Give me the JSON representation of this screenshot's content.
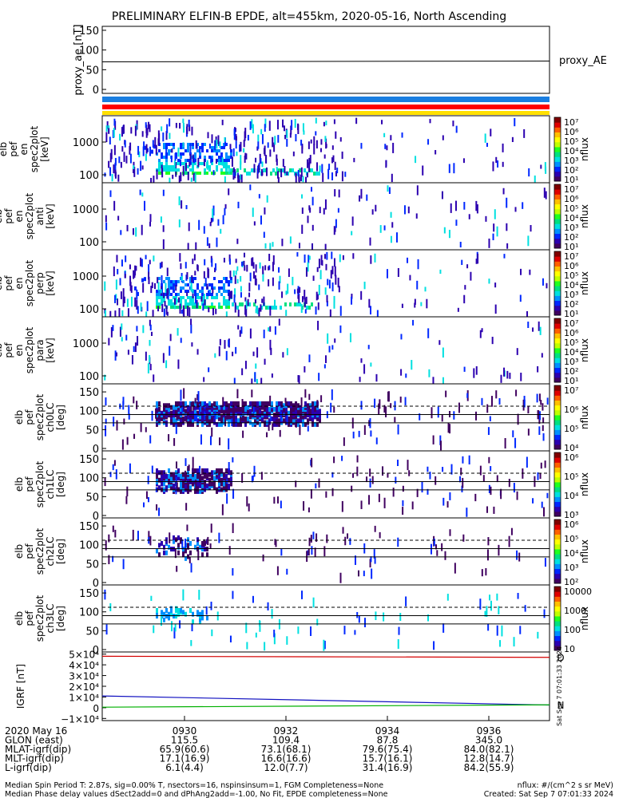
{
  "title": "PRELIMINARY ELFIN-B EPDE, alt=455km, 2020-05-16, North Ascending",
  "colors": {
    "bar_blue": "#1a7ee0",
    "bar_red": "#ff0000",
    "bar_yellow": "#ffe000",
    "trace_red": "#d40000",
    "trace_blue": "#1010c0",
    "trace_green": "#00b000",
    "colorscale": [
      "#ffffff",
      "#400060",
      "#2c00b0",
      "#0028ff",
      "#0090ff",
      "#00e0e0",
      "#00e080",
      "#20ff20",
      "#c0ff00",
      "#ffff00",
      "#ffc000",
      "#ff6000",
      "#e00000",
      "#800000"
    ]
  },
  "chart_data": [
    {
      "type": "line",
      "ylabel": "proxy_ae [nT]",
      "yticks": [
        "150",
        "100",
        "50",
        "0"
      ],
      "legend": "proxy_AE",
      "x": [
        "0928",
        "0937.6"
      ],
      "values": [
        70,
        72
      ],
      "ylim": [
        -10,
        160
      ]
    },
    {
      "type": "heatmap",
      "ylabel": "elb pef en spec2plot [keV]",
      "yticks": [
        "1000",
        "100"
      ],
      "colorbar": {
        "label": "nflux",
        "ticks": [
          "10⁷",
          "10⁶",
          "10⁵",
          "10⁴",
          "10³",
          "10²",
          "10¹"
        ]
      }
    },
    {
      "type": "heatmap",
      "ylabel": "elb pef en spec2plot anti [keV]",
      "yticks": [
        "1000",
        "100"
      ],
      "colorbar": {
        "label": "nflux",
        "ticks": [
          "10⁷",
          "10⁶",
          "10⁵",
          "10⁴",
          "10³",
          "10²",
          "10¹"
        ]
      }
    },
    {
      "type": "heatmap",
      "ylabel": "elb pef en spec2plot perp [keV]",
      "yticks": [
        "1000",
        "100"
      ],
      "colorbar": {
        "label": "nflux",
        "ticks": [
          "10⁷",
          "10⁶",
          "10⁵",
          "10⁴",
          "10³",
          "10²",
          "10¹"
        ]
      }
    },
    {
      "type": "heatmap",
      "ylabel": "elb pef en spec2plot para [keV]",
      "yticks": [
        "1000",
        "100"
      ],
      "colorbar": {
        "label": "nflux",
        "ticks": [
          "10⁷",
          "10⁶",
          "10⁵",
          "10⁴",
          "10³",
          "10²",
          "10¹"
        ]
      }
    },
    {
      "type": "heatmap",
      "ylabel": "elb pef spec2plot ch0LC [deg]",
      "yticks": [
        "150",
        "100",
        "50",
        "0"
      ],
      "colorbar": {
        "label": "nflux",
        "ticks": [
          "10⁷",
          "10⁶",
          "10⁵",
          "10⁴"
        ]
      }
    },
    {
      "type": "heatmap",
      "ylabel": "elb pef spec2plot ch1LC [deg]",
      "yticks": [
        "150",
        "100",
        "50",
        "0"
      ],
      "colorbar": {
        "label": "nflux",
        "ticks": [
          "10⁶",
          "10⁵",
          "10⁴",
          "10³"
        ]
      }
    },
    {
      "type": "heatmap",
      "ylabel": "elb pef spec2plot ch2LC [deg]",
      "yticks": [
        "150",
        "100",
        "50",
        "0"
      ],
      "colorbar": {
        "label": "nflux",
        "ticks": [
          "10⁶",
          "10⁵",
          "10⁴",
          "10³",
          "10²"
        ]
      }
    },
    {
      "type": "heatmap",
      "ylabel": "elb pef spec2plot ch3LC [deg]",
      "yticks": [
        "150",
        "100",
        "50",
        "0"
      ],
      "colorbar": {
        "label": "nflux",
        "ticks": [
          "10000",
          "1000",
          "100",
          "10"
        ]
      }
    },
    {
      "type": "line",
      "ylabel": "IGRF [nT]",
      "yticks": [
        "5×10⁴",
        "4×10⁴",
        "3×10⁴",
        "2×10⁴",
        "1×10⁴",
        "0",
        "−1×10⁴"
      ],
      "legend": [
        "D",
        "N"
      ],
      "side_text": "Sat Sep 7 07:01:33 2024",
      "series": [
        {
          "values": [
            48000,
            47000
          ]
        },
        {
          "values": [
            11000,
            2500
          ]
        },
        {
          "values": [
            500,
            2700
          ]
        }
      ],
      "ylim": [
        -12000,
        52000
      ]
    }
  ],
  "time_axis": {
    "ticks": [
      "0930",
      "0932",
      "0934",
      "0936"
    ],
    "rows": [
      {
        "label": "2020 May 16",
        "values": [
          "0930",
          "0932",
          "0934",
          "0936"
        ]
      },
      {
        "label": "GLON (east)",
        "values": [
          "115.5",
          "109.4",
          "87.8",
          "345.0"
        ]
      },
      {
        "label": "MLAT-igrf(dip)",
        "values": [
          "65.9(60.6)",
          "73.1(68.1)",
          "79.6(75.4)",
          "84.0(82.1)"
        ]
      },
      {
        "label": "MLT-igrf(dip)",
        "values": [
          "17.1(16.9)",
          "16.6(16.6)",
          "15.7(16.1)",
          "12.8(14.7)"
        ]
      },
      {
        "label": "L-igrf(dip)",
        "values": [
          "6.1(4.4)",
          "12.0(7.7)",
          "31.4(16.9)",
          "84.2(55.9)"
        ]
      }
    ]
  },
  "footer": {
    "left_1": "Median Spin Period T: 2.87s, sig=0.00% T, nsectors=16, nspinsinsum=1, FGM Completeness=None",
    "left_2": "Median Phase delay values dSect2add=0 and dPhAng2add=-1.00, No Fit, EPDE completeness=None",
    "right_1": "nflux: #/(cm^2 s sr MeV)",
    "right_2": "Created: Sat Sep  7 07:01:33 2024"
  }
}
